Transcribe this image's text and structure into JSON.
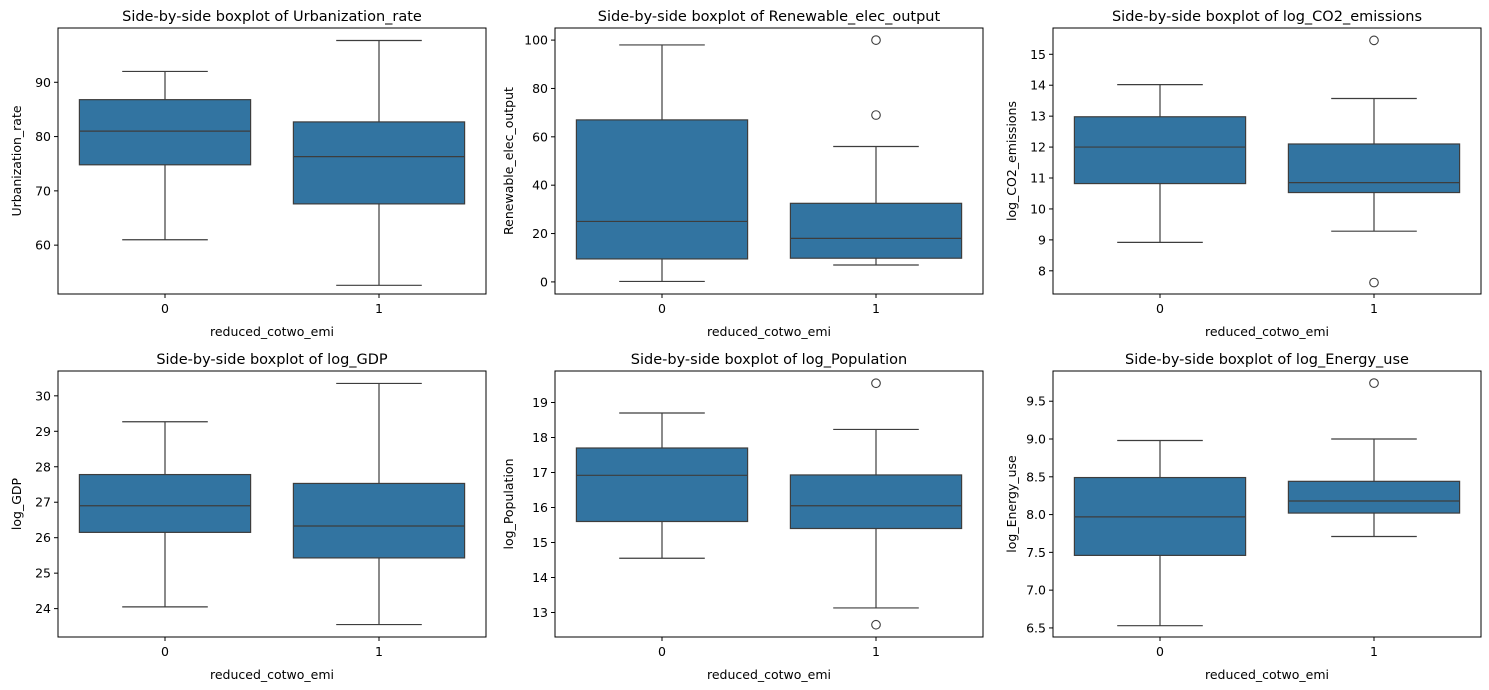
{
  "chart_data": [
    {
      "type": "box",
      "title": "Side-by-side boxplot of Urbanization_rate",
      "xlabel": "reduced_cotwo_emi",
      "ylabel": "Urbanization_rate",
      "categories": [
        "0",
        "1"
      ],
      "ylim": [
        51,
        100
      ],
      "yticks": [
        60,
        70,
        80,
        90
      ],
      "ytick_labels": [
        "60",
        "70",
        "80",
        "90"
      ],
      "boxes": [
        {
          "category": "0",
          "whisker_low": 61,
          "q1": 74.8,
          "median": 81,
          "q3": 86.8,
          "whisker_high": 92,
          "outliers": []
        },
        {
          "category": "1",
          "whisker_low": 52.6,
          "q1": 67.6,
          "median": 76.3,
          "q3": 82.7,
          "whisker_high": 97.7,
          "outliers": []
        }
      ]
    },
    {
      "type": "box",
      "title": "Side-by-side boxplot of Renewable_elec_output",
      "xlabel": "reduced_cotwo_emi",
      "ylabel": "Renewable_elec_output",
      "categories": [
        "0",
        "1"
      ],
      "ylim": [
        -5,
        105
      ],
      "yticks": [
        0,
        20,
        40,
        60,
        80,
        100
      ],
      "ytick_labels": [
        "0",
        "20",
        "40",
        "60",
        "80",
        "100"
      ],
      "boxes": [
        {
          "category": "0",
          "whisker_low": 0.2,
          "q1": 9.5,
          "median": 25,
          "q3": 67,
          "whisker_high": 98,
          "outliers": []
        },
        {
          "category": "1",
          "whisker_low": 7,
          "q1": 9.8,
          "median": 18,
          "q3": 32.5,
          "whisker_high": 56,
          "outliers": [
            69,
            100
          ]
        }
      ]
    },
    {
      "type": "box",
      "title": "Side-by-side boxplot of log_CO2_emissions",
      "xlabel": "reduced_cotwo_emi",
      "ylabel": "log_CO2_emissions",
      "categories": [
        "0",
        "1"
      ],
      "ylim": [
        7.25,
        15.85
      ],
      "yticks": [
        8,
        9,
        10,
        11,
        12,
        13,
        14,
        15
      ],
      "ytick_labels": [
        "8",
        "9",
        "10",
        "11",
        "12",
        "13",
        "14",
        "15"
      ],
      "boxes": [
        {
          "category": "0",
          "whisker_low": 8.92,
          "q1": 10.82,
          "median": 12.0,
          "q3": 12.98,
          "whisker_high": 14.02,
          "outliers": []
        },
        {
          "category": "1",
          "whisker_low": 9.28,
          "q1": 10.53,
          "median": 10.85,
          "q3": 12.1,
          "whisker_high": 13.57,
          "outliers": [
            7.62,
            15.45
          ]
        }
      ]
    },
    {
      "type": "box",
      "title": "Side-by-side boxplot of log_GDP",
      "xlabel": "reduced_cotwo_emi",
      "ylabel": "log_GDP",
      "categories": [
        "0",
        "1"
      ],
      "ylim": [
        23.2,
        30.7
      ],
      "yticks": [
        24,
        25,
        26,
        27,
        28,
        29,
        30
      ],
      "ytick_labels": [
        "24",
        "25",
        "26",
        "27",
        "28",
        "29",
        "30"
      ],
      "boxes": [
        {
          "category": "0",
          "whisker_low": 24.05,
          "q1": 26.15,
          "median": 26.9,
          "q3": 27.78,
          "whisker_high": 29.27,
          "outliers": []
        },
        {
          "category": "1",
          "whisker_low": 23.55,
          "q1": 25.43,
          "median": 26.33,
          "q3": 27.53,
          "whisker_high": 30.35,
          "outliers": []
        }
      ]
    },
    {
      "type": "box",
      "title": "Side-by-side boxplot of log_Population",
      "xlabel": "reduced_cotwo_emi",
      "ylabel": "log_Population",
      "categories": [
        "0",
        "1"
      ],
      "ylim": [
        12.3,
        19.9
      ],
      "yticks": [
        13,
        14,
        15,
        16,
        17,
        18,
        19
      ],
      "ytick_labels": [
        "13",
        "14",
        "15",
        "16",
        "17",
        "18",
        "19"
      ],
      "boxes": [
        {
          "category": "0",
          "whisker_low": 14.55,
          "q1": 15.6,
          "median": 16.92,
          "q3": 17.7,
          "whisker_high": 18.7,
          "outliers": []
        },
        {
          "category": "1",
          "whisker_low": 13.13,
          "q1": 15.4,
          "median": 16.05,
          "q3": 16.93,
          "whisker_high": 18.23,
          "outliers": [
            12.65,
            19.55
          ]
        }
      ]
    },
    {
      "type": "box",
      "title": "Side-by-side boxplot of log_Energy_use",
      "xlabel": "reduced_cotwo_emi",
      "ylabel": "log_Energy_use",
      "categories": [
        "0",
        "1"
      ],
      "ylim": [
        6.38,
        9.9
      ],
      "yticks": [
        6.5,
        7.0,
        7.5,
        8.0,
        8.5,
        9.0,
        9.5
      ],
      "ytick_labels": [
        "6.5",
        "7.0",
        "7.5",
        "8.0",
        "8.5",
        "9.0",
        "9.5"
      ],
      "boxes": [
        {
          "category": "0",
          "whisker_low": 6.53,
          "q1": 7.46,
          "median": 7.97,
          "q3": 8.49,
          "whisker_high": 8.98,
          "outliers": []
        },
        {
          "category": "1",
          "whisker_low": 7.71,
          "q1": 8.02,
          "median": 8.18,
          "q3": 8.44,
          "whisker_high": 9.0,
          "outliers": [
            9.74
          ]
        }
      ]
    }
  ],
  "colors": {
    "box_fill": "#3274a1",
    "line": "#3d3d3d",
    "axis": "#000000"
  }
}
